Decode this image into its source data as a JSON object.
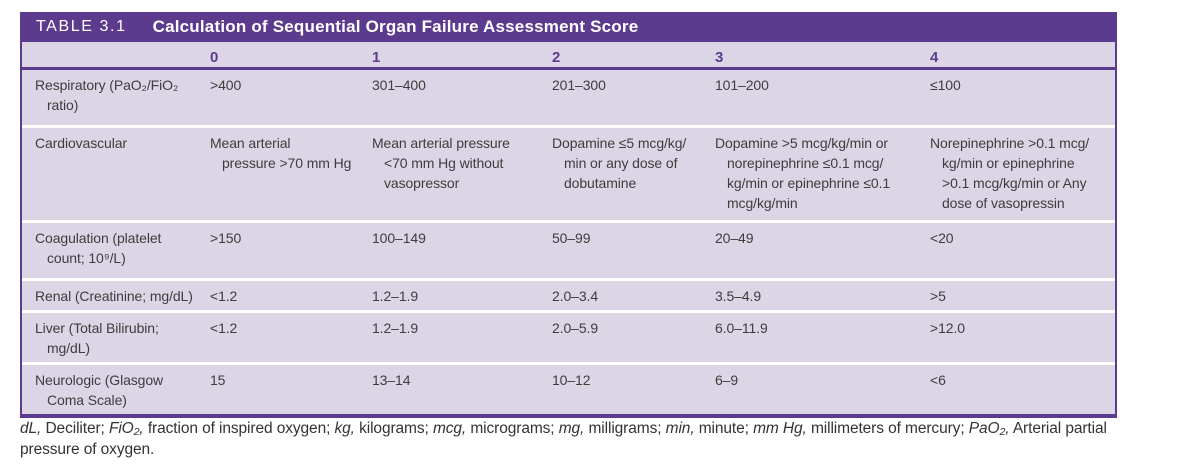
{
  "table": {
    "tag": "TABLE 3.1",
    "title": "Calculation of Sequential Organ Failure Assessment Score",
    "colors": {
      "header_purple": "#5c3b8e",
      "body_lavender": "#dcd5e6",
      "cell_text": "#3d3d3d",
      "separator_white": "#ffffff"
    },
    "score_headers": [
      "0",
      "1",
      "2",
      "3",
      "4"
    ],
    "rows": [
      {
        "label": "Respiratory (PaO₂/FiO₂\nratio)",
        "values": [
          ">400",
          "301–400",
          "201–300",
          "101–200",
          "≤100"
        ]
      },
      {
        "label": "Cardiovascular",
        "values": [
          "Mean arterial\npressure >70 mm Hg",
          "Mean arterial pressure\n<70 mm Hg without\nvasopressor",
          "Dopamine ≤5 mcg/kg/\nmin or any dose of\ndobutamine",
          "Dopamine >5 mcg/kg/min or\nnorepinephrine ≤0.1 mcg/\nkg/min or epinephrine ≤0.1\nmcg/kg/min",
          "Norepinephrine >0.1 mcg/\nkg/min or epinephrine\n>0.1 mcg/kg/min or Any\ndose of vasopressin"
        ]
      },
      {
        "label": "Coagulation (platelet\ncount; 10⁹/L)",
        "values": [
          ">150",
          "100–149",
          "50–99",
          "20–49",
          "<20"
        ]
      },
      {
        "label": "Renal (Creatinine; mg/dL)",
        "values": [
          "<1.2",
          "1.2–1.9",
          "2.0–3.4",
          "3.5–4.9",
          ">5"
        ]
      },
      {
        "label": "Liver (Total Bilirubin;\nmg/dL)",
        "values": [
          "<1.2",
          "1.2–1.9",
          "2.0–5.9",
          "6.0–11.9",
          ">12.0"
        ]
      },
      {
        "label": "Neurologic (Glasgow\nComa Scale)",
        "values": [
          "15",
          "13–14",
          "10–12",
          "6–9",
          "<6"
        ]
      }
    ]
  },
  "footnote": {
    "segments": [
      {
        "text": "dL,",
        "italic": true
      },
      {
        "text": " Deciliter; ",
        "italic": false
      },
      {
        "text": "FiO₂,",
        "italic": true
      },
      {
        "text": " fraction of inspired oxygen; ",
        "italic": false
      },
      {
        "text": "kg,",
        "italic": true
      },
      {
        "text": " kilograms; ",
        "italic": false
      },
      {
        "text": "mcg,",
        "italic": true
      },
      {
        "text": " micrograms; ",
        "italic": false
      },
      {
        "text": "mg,",
        "italic": true
      },
      {
        "text": " milligrams; ",
        "italic": false
      },
      {
        "text": "min,",
        "italic": true
      },
      {
        "text": " minute; ",
        "italic": false
      },
      {
        "text": "mm Hg,",
        "italic": true
      },
      {
        "text": " millimeters of mercury; ",
        "italic": false
      },
      {
        "text": "PaO₂,",
        "italic": true
      },
      {
        "text": " Arterial partial pressure of oxygen.",
        "italic": false
      }
    ]
  }
}
